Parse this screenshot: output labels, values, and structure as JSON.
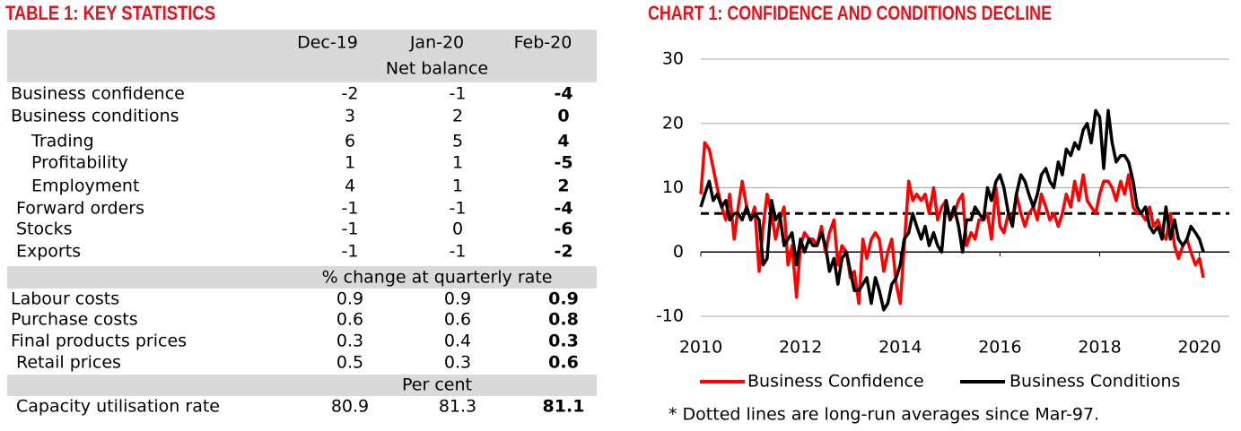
{
  "table": {
    "title": "TABLE 1: KEY STATISTICS",
    "columns": [
      "Dec-19",
      "Jan-20",
      "Feb-20"
    ],
    "sections": [
      {
        "heading": "Net balance",
        "rows": [
          [
            "Business confidence",
            "-2",
            "-1",
            "-4"
          ],
          [
            "Business conditions",
            "3",
            "2",
            "0"
          ],
          [
            "Trading",
            "6",
            "5",
            "4"
          ],
          [
            "Profitability",
            "1",
            "1",
            "-5"
          ],
          [
            "Employment",
            "4",
            "1",
            "2"
          ],
          [
            "Forward orders",
            "-1",
            "-1",
            "-4"
          ],
          [
            "Stocks",
            "-1",
            "0",
            "-6"
          ],
          [
            "Exports",
            "-1",
            "-1",
            "-2"
          ]
        ]
      },
      {
        "heading": "% change at quarterly rate",
        "rows": [
          [
            "Labour costs",
            "0.9",
            "0.9",
            "0.9"
          ],
          [
            "Purchase costs",
            "0.6",
            "0.6",
            "0.8"
          ],
          [
            "Final products prices",
            "0.3",
            "0.4",
            "0.3"
          ],
          [
            "Retail prices",
            "0.5",
            "0.3",
            "0.6"
          ]
        ]
      },
      {
        "heading": "Per cent",
        "rows": [
          [
            "Capacity utilisation rate",
            "80.9",
            "81.3",
            "81.1"
          ]
        ]
      }
    ]
  },
  "chart_data": {
    "type": "line",
    "title": "CHART 1: CONFIDENCE AND CONDITIONS DECLINE",
    "note": "* Dotted lines are long-run averages since Mar-97.",
    "x": [
      2010,
      2010.08,
      2010.17,
      2010.25,
      2010.33,
      2010.42,
      2010.5,
      2010.58,
      2010.67,
      2010.75,
      2010.83,
      2010.92,
      2011,
      2011.08,
      2011.17,
      2011.25,
      2011.33,
      2011.42,
      2011.5,
      2011.58,
      2011.67,
      2011.75,
      2011.83,
      2011.92,
      2012,
      2012.08,
      2012.17,
      2012.25,
      2012.33,
      2012.42,
      2012.5,
      2012.58,
      2012.67,
      2012.75,
      2012.83,
      2012.92,
      2013,
      2013.08,
      2013.17,
      2013.25,
      2013.33,
      2013.42,
      2013.5,
      2013.58,
      2013.67,
      2013.75,
      2013.83,
      2013.92,
      2014,
      2014.08,
      2014.17,
      2014.25,
      2014.33,
      2014.42,
      2014.5,
      2014.58,
      2014.67,
      2014.75,
      2014.83,
      2014.92,
      2015,
      2015.08,
      2015.17,
      2015.25,
      2015.33,
      2015.42,
      2015.5,
      2015.58,
      2015.67,
      2015.75,
      2015.83,
      2015.92,
      2016,
      2016.08,
      2016.17,
      2016.25,
      2016.33,
      2016.42,
      2016.5,
      2016.58,
      2016.67,
      2016.75,
      2016.83,
      2016.92,
      2017,
      2017.08,
      2017.17,
      2017.25,
      2017.33,
      2017.42,
      2017.5,
      2017.58,
      2017.67,
      2017.75,
      2017.83,
      2017.92,
      2018,
      2018.08,
      2018.17,
      2018.25,
      2018.33,
      2018.42,
      2018.5,
      2018.58,
      2018.67,
      2018.75,
      2018.83,
      2018.92,
      2019,
      2019.08,
      2019.17,
      2019.25,
      2019.33,
      2019.42,
      2019.5,
      2019.58,
      2019.67,
      2019.75,
      2019.83,
      2019.92,
      2020,
      2020.08
    ],
    "series": [
      {
        "name": "Business Confidence",
        "color": "#ff0000",
        "values": [
          9,
          17,
          16,
          13,
          10,
          7,
          5,
          9,
          2,
          7,
          11,
          7,
          5,
          7,
          -3,
          4,
          9,
          6,
          2,
          5,
          7,
          -2,
          1,
          -7,
          1,
          3,
          2,
          2,
          1,
          4,
          0,
          3,
          5,
          -2,
          1,
          0,
          -4,
          -3,
          -8,
          2,
          -1,
          2,
          3,
          2,
          -3,
          0,
          2,
          -5,
          -8,
          1,
          11,
          8,
          9,
          8,
          9,
          6,
          10,
          5,
          7,
          8,
          5,
          6,
          8,
          9,
          1,
          3,
          2,
          5,
          5,
          6,
          2,
          10,
          4,
          3,
          6,
          5,
          9,
          6,
          4,
          6,
          7,
          5,
          9,
          7,
          5,
          6,
          4,
          6,
          9,
          7,
          11,
          8,
          12,
          8,
          7,
          6,
          9,
          11,
          11,
          10,
          8,
          11,
          9,
          12,
          7,
          6,
          6,
          5,
          7,
          4,
          5,
          3,
          2,
          6,
          1,
          -1,
          1,
          2,
          0,
          -2,
          -1,
          -4
        ]
      },
      {
        "name": "Business Conditions",
        "color": "#000000",
        "values": [
          7,
          9,
          11,
          8,
          9,
          7,
          8,
          5,
          6,
          6,
          5,
          7,
          5,
          6,
          5,
          -2,
          -1,
          8,
          5,
          6,
          1,
          2,
          3,
          -2,
          2,
          0,
          2,
          1,
          1,
          3,
          1,
          -3,
          -1,
          -5,
          -1,
          0,
          -3,
          -6,
          -6,
          -5,
          -4,
          -8,
          -4,
          -6,
          -9,
          -8,
          -5,
          -4,
          -2,
          2,
          3,
          6,
          4,
          2,
          4,
          1,
          3,
          1,
          0,
          8,
          5,
          7,
          4,
          0,
          5,
          5,
          7,
          6,
          5,
          10,
          8,
          11,
          12,
          10,
          6,
          4,
          9,
          12,
          11,
          9,
          7,
          9,
          12,
          13,
          11,
          10,
          14,
          12,
          16,
          15,
          17,
          16,
          19,
          20,
          17,
          22,
          21,
          13,
          22,
          17,
          14,
          15,
          15,
          14,
          11,
          7,
          6,
          7,
          4,
          3,
          4,
          2,
          7,
          2,
          5,
          2,
          1,
          2,
          4,
          3,
          2,
          0
        ]
      }
    ],
    "reference_line": 6,
    "xlim": [
      2010,
      2020.6
    ],
    "xticks": [
      2010,
      2012,
      2014,
      2016,
      2018,
      2020
    ],
    "ylim": [
      -10,
      30
    ],
    "yticks": [
      -10,
      0,
      10,
      20,
      30
    ],
    "grid": true
  }
}
